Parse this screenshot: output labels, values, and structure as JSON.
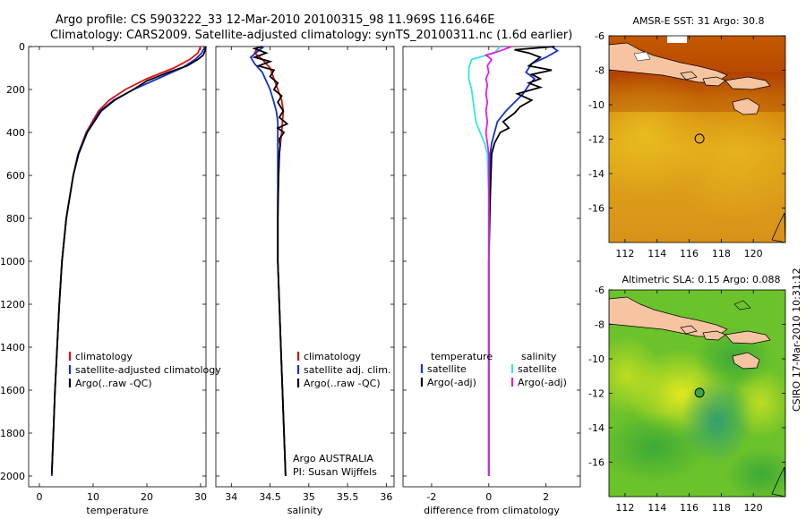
{
  "header": {
    "title_line1": "Argo profile: CS 5903222_33 12-Mar-2010 20100315_98 11.969S 116.646E",
    "title_line2": "Climatology: CARS2009. Satellite-adjusted climatology: synTS_20100311.nc (1.6d earlier)"
  },
  "colors": {
    "climatology": "#e0100c",
    "satellite": "#1530d8",
    "argo": "#000000",
    "salinity_sat": "#33e6e6",
    "salinity_argo": "#e020e0"
  },
  "chart_data": [
    {
      "type": "line",
      "id": "temperature",
      "xlabel": "temperature",
      "ylabel": "",
      "xlim": [
        -2,
        31
      ],
      "ylim": [
        2050,
        0
      ],
      "xticks": [
        0,
        10,
        20,
        30
      ],
      "yticks": [
        0,
        200,
        400,
        600,
        800,
        1000,
        1200,
        1400,
        1600,
        1800,
        2000
      ],
      "legend": [
        "climatology",
        "satellite-adjusted climatology",
        "Argo(..raw -QC)"
      ],
      "series": [
        {
          "name": "climatology",
          "depth": [
            0,
            30,
            60,
            100,
            150,
            200,
            250,
            300,
            400,
            500,
            600,
            800,
            1000,
            1200,
            1400,
            1600,
            1800,
            2000
          ],
          "values": [
            30,
            29.5,
            28,
            25,
            20,
            16,
            13,
            11,
            8.7,
            7.2,
            6.3,
            5,
            4.2,
            3.7,
            3.3,
            2.9,
            2.6,
            2.3
          ]
        },
        {
          "name": "satellite-adjusted climatology",
          "depth": [
            0,
            30,
            60,
            100,
            150,
            200,
            250,
            300,
            400,
            500,
            600,
            800,
            1000,
            1200,
            1400,
            1600,
            1800,
            2000
          ],
          "values": [
            30.8,
            30.2,
            29,
            26.5,
            22,
            17.5,
            13.8,
            11.3,
            8.8,
            7.2,
            6.3,
            5,
            4.2,
            3.7,
            3.3,
            2.9,
            2.6,
            2.3
          ]
        },
        {
          "name": "Argo(..raw -QC)",
          "depth": [
            0,
            20,
            40,
            60,
            90,
            120,
            160,
            200,
            250,
            300,
            400,
            500,
            600,
            800,
            1000,
            1200,
            1400,
            1600,
            1800,
            1990
          ],
          "values": [
            31,
            30.8,
            30.5,
            29.5,
            27.5,
            24,
            20,
            17.5,
            14,
            11.5,
            8.9,
            7.3,
            6.3,
            5,
            4.2,
            3.7,
            3.3,
            2.9,
            2.6,
            2.3
          ]
        }
      ]
    },
    {
      "type": "line",
      "id": "salinity",
      "xlabel": "salinity",
      "ylabel": "",
      "xlim": [
        33.8,
        36.1
      ],
      "ylim": [
        2050,
        0
      ],
      "xticks": [
        34,
        34.5,
        35,
        35.5,
        36
      ],
      "tick_labels": [
        "34",
        "34.5",
        "35",
        "35.5",
        "36"
      ],
      "legend": [
        "climatology",
        "satellite adj. clim.",
        "Argo(..raw -QC)"
      ],
      "annotation_line1": "Argo AUSTRALIA",
      "annotation_line2": "PI: Susan Wijffels",
      "series": [
        {
          "name": "climatology",
          "depth": [
            0,
            30,
            60,
            100,
            150,
            200,
            250,
            300,
            350,
            400,
            500,
            700,
            1000,
            1500,
            2000
          ],
          "values": [
            34.35,
            34.3,
            34.4,
            34.5,
            34.55,
            34.6,
            34.65,
            34.67,
            34.66,
            34.65,
            34.62,
            34.6,
            34.6,
            34.65,
            34.7
          ]
        },
        {
          "name": "satellite adj. clim.",
          "depth": [
            0,
            20,
            50,
            80,
            120,
            160,
            200,
            260,
            300,
            350,
            400,
            450,
            500,
            700,
            1000,
            1500,
            2000
          ],
          "values": [
            34.42,
            34.35,
            34.25,
            34.3,
            34.4,
            34.45,
            34.5,
            34.55,
            34.58,
            34.6,
            34.6,
            34.6,
            34.6,
            34.6,
            34.6,
            34.65,
            34.7
          ]
        },
        {
          "name": "Argo(..raw -QC)",
          "depth": [
            0,
            10,
            30,
            50,
            70,
            90,
            110,
            140,
            170,
            200,
            230,
            260,
            300,
            330,
            360,
            380,
            400,
            430,
            460,
            500,
            600,
            800,
            1000,
            1500,
            2000
          ],
          "values": [
            34.4,
            34.3,
            34.45,
            34.3,
            34.5,
            34.35,
            34.55,
            34.5,
            34.6,
            34.55,
            34.65,
            34.6,
            34.67,
            34.62,
            34.72,
            34.6,
            34.68,
            34.62,
            34.63,
            34.62,
            34.61,
            34.6,
            34.6,
            34.65,
            34.7
          ]
        }
      ]
    },
    {
      "type": "line",
      "id": "difference",
      "xlabel": "difference from climatology",
      "ylabel": "",
      "xlim": [
        -3,
        3.2
      ],
      "ylim": [
        2050,
        0
      ],
      "xticks": [
        -2,
        0,
        2
      ],
      "tick_labels": [
        "-2",
        "0",
        "2"
      ],
      "legend_header_t": "temperature",
      "legend_header_s": "salinity",
      "legend": [
        "satellite",
        "Argo(-adj)",
        "satellite",
        "Argo(-adj)"
      ],
      "series": [
        {
          "name": "temperature satellite",
          "depth": [
            0,
            20,
            50,
            80,
            120,
            150,
            180,
            220,
            260,
            300,
            350,
            400,
            450,
            500,
            700,
            1000,
            1500,
            2000
          ],
          "values": [
            2.2,
            2.4,
            2.0,
            1.5,
            1.3,
            1.6,
            1.4,
            1.2,
            0.9,
            0.6,
            0.3,
            0.2,
            0.1,
            0.05,
            0,
            0,
            0,
            0
          ]
        },
        {
          "name": "temperature Argo(-adj)",
          "depth": [
            0,
            15,
            30,
            50,
            70,
            90,
            110,
            130,
            150,
            170,
            190,
            220,
            250,
            280,
            310,
            350,
            380,
            400,
            450,
            500,
            700,
            1000,
            1500,
            2000
          ],
          "values": [
            2.3,
            0.9,
            1.4,
            1.8,
            1.6,
            1.4,
            2.2,
            1.5,
            1.8,
            1.4,
            1.8,
            1.0,
            1.5,
            1.1,
            0.9,
            0.5,
            0.7,
            0.4,
            0.2,
            0.1,
            0.05,
            0,
            0,
            0
          ]
        },
        {
          "name": "salinity satellite",
          "depth": [
            0,
            30,
            60,
            100,
            150,
            200,
            250,
            300,
            350,
            400,
            450,
            500,
            700,
            1000,
            1500,
            2000
          ],
          "values": [
            0.4,
            0.2,
            -0.6,
            -0.7,
            -0.7,
            -0.6,
            -0.55,
            -0.5,
            -0.45,
            -0.3,
            -0.15,
            -0.05,
            0,
            0,
            0,
            0
          ]
        },
        {
          "name": "salinity Argo(-adj)",
          "depth": [
            0,
            20,
            40,
            60,
            90,
            120,
            150,
            180,
            220,
            260,
            300,
            350,
            400,
            450,
            500,
            700,
            1000,
            1500,
            2000
          ],
          "values": [
            0.8,
            0.4,
            -0.1,
            0.1,
            -0.05,
            0,
            -0.1,
            -0.05,
            -0.1,
            -0.05,
            -0.1,
            -0.05,
            -0.1,
            -0.05,
            0,
            0,
            0,
            0,
            0
          ]
        }
      ]
    },
    {
      "type": "heatmap",
      "id": "sst_map",
      "title": "AMSR-E SST: 31 Argo: 30.8",
      "xlim": [
        111,
        122
      ],
      "ylim": [
        -18,
        -6
      ],
      "xticks": [
        112,
        114,
        116,
        118,
        120
      ],
      "yticks": [
        -6,
        -8,
        -10,
        -12,
        -14,
        -16
      ],
      "marker": {
        "lon": 116.646,
        "lat": -11.969
      }
    },
    {
      "type": "heatmap",
      "id": "sla_map",
      "title": "Altimetric SLA: 0.15 Argo: 0.088",
      "xlim": [
        111,
        122
      ],
      "ylim": [
        -18,
        -6
      ],
      "xticks": [
        112,
        114,
        116,
        118,
        120
      ],
      "yticks": [
        -6,
        -8,
        -10,
        -12,
        -14,
        -16
      ],
      "marker": {
        "lon": 116.646,
        "lat": -11.969
      }
    }
  ],
  "credit": "CSIRO 17-Mar-2010 10:31:12"
}
